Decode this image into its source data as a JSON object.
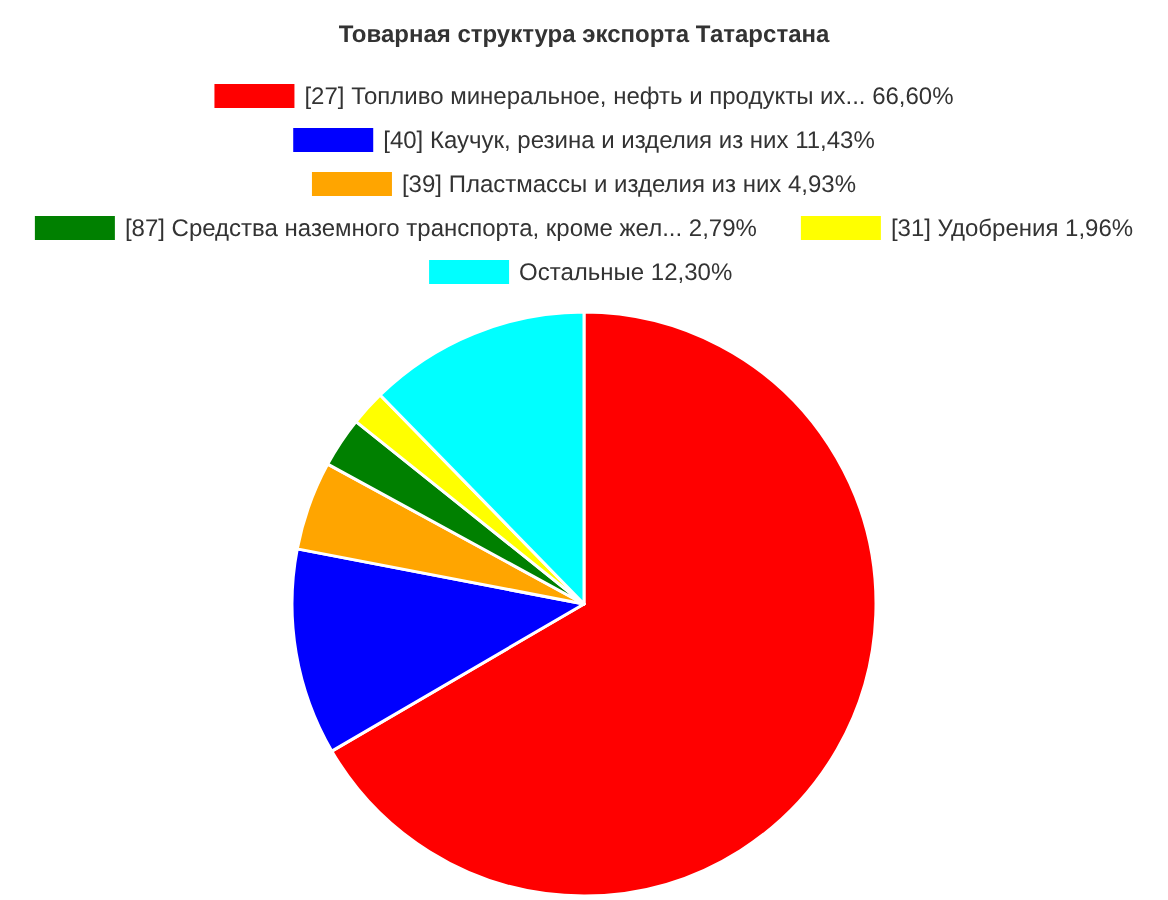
{
  "chart_data": {
    "type": "pie",
    "title": "Товарная структура экспорта Татарстана",
    "categories": [
      "[27] Топливо минеральное, нефть и продукты их...",
      "[40] Каучук, резина и изделия из них",
      "[39] Пластмассы и изделия из них",
      "[87] Средства наземного транспорта, кроме жел...",
      "[31] Удобрения",
      "Остальные "
    ],
    "values": [
      66.6,
      11.43,
      4.93,
      2.79,
      1.96,
      12.3
    ],
    "value_labels": [
      "66,60%",
      "11,43%",
      "4,93%",
      "2,79%",
      "1,96%",
      "12,30%"
    ],
    "colors": [
      "#ff0000",
      "#0000ff",
      "#ffa500",
      "#008000",
      "#ffff00",
      "#00ffff"
    ],
    "legend": "top"
  }
}
